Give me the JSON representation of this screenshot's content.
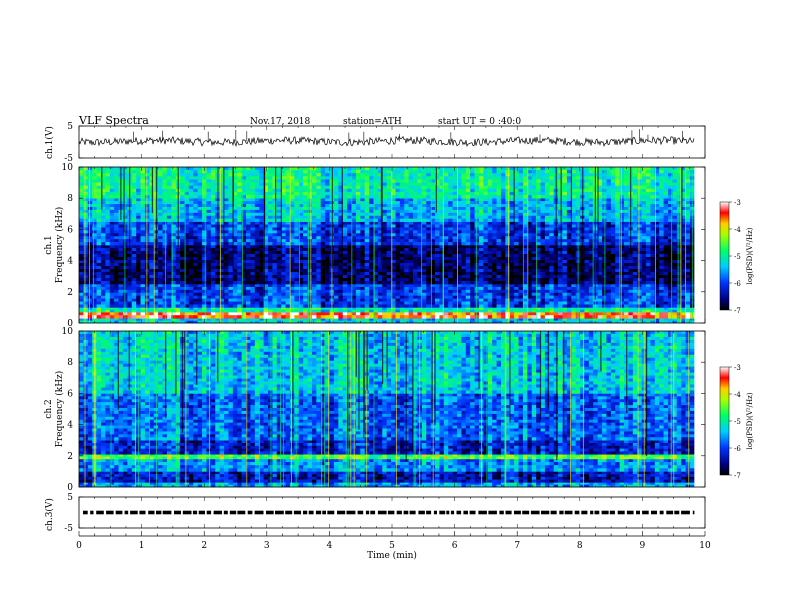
{
  "header": {
    "title": "VLF  Spectra",
    "date": "Nov.17, 2018",
    "station": "station=ATH",
    "start": "start  UT  =   0 :40:0"
  },
  "chart_data": [
    {
      "type": "line",
      "panel": "ch1-waveform",
      "ylabel": "ch.1(V)",
      "ylim": [
        -5,
        5
      ],
      "yticks": [
        "5",
        "-5"
      ],
      "x_range": [
        0,
        9.83
      ],
      "description_values": {
        "baseline": 0.2,
        "amplitude": 1.2
      },
      "color": "#000000"
    },
    {
      "type": "heatmap",
      "panel": "ch1-spectrogram",
      "ylabel": "ch.1\nFrequency  (kHz)",
      "ylabel_lines": [
        "ch.1",
        "Frequency  (kHz)"
      ],
      "ylim": [
        0,
        10
      ],
      "yticks": [
        "0",
        "2",
        "4",
        "6",
        "8",
        "10"
      ],
      "x_range": [
        0,
        9.83
      ],
      "colorbar": {
        "label": "log(PSD)(V²/Hz)",
        "range": [
          -7,
          -3
        ],
        "ticks": [
          "-3",
          "-4",
          "-5",
          "-6",
          "-7"
        ]
      },
      "bands_log_psd": [
        {
          "fmin": 0.0,
          "fmax": 0.3,
          "value": -5.3
        },
        {
          "fmin": 0.3,
          "fmax": 0.7,
          "value": -3.4
        },
        {
          "fmin": 0.7,
          "fmax": 1.0,
          "value": -5.0
        },
        {
          "fmin": 1.0,
          "fmax": 2.5,
          "value": -6.0
        },
        {
          "fmin": 2.5,
          "fmax": 5.0,
          "value": -6.6
        },
        {
          "fmin": 5.0,
          "fmax": 6.5,
          "value": -6.0
        },
        {
          "fmin": 6.5,
          "fmax": 8.0,
          "value": -5.4
        },
        {
          "fmin": 8.0,
          "fmax": 10.0,
          "value": -5.0
        }
      ]
    },
    {
      "type": "heatmap",
      "panel": "ch2-spectrogram",
      "ylabel_lines": [
        "ch.2",
        "Frequency  (kHz)"
      ],
      "ylim": [
        0,
        10
      ],
      "yticks": [
        "0",
        "2",
        "4",
        "6",
        "8",
        "10"
      ],
      "x_range": [
        0,
        9.83
      ],
      "colorbar": {
        "label": "log(PSD)(V²/Hz)",
        "range": [
          -7,
          -3
        ],
        "ticks": [
          "-3",
          "-4",
          "-5",
          "-6",
          "-7"
        ]
      },
      "bands_log_psd": [
        {
          "fmin": 0.0,
          "fmax": 0.3,
          "value": -5.5
        },
        {
          "fmin": 0.3,
          "fmax": 1.0,
          "value": -6.3
        },
        {
          "fmin": 1.0,
          "fmax": 1.8,
          "value": -5.6
        },
        {
          "fmin": 1.8,
          "fmax": 2.1,
          "value": -4.5
        },
        {
          "fmin": 2.1,
          "fmax": 3.0,
          "value": -6.2
        },
        {
          "fmin": 3.0,
          "fmax": 6.0,
          "value": -5.8
        },
        {
          "fmin": 6.0,
          "fmax": 10.0,
          "value": -5.3
        }
      ]
    },
    {
      "type": "line",
      "panel": "ch3-waveform",
      "ylabel": "ch.3(V)",
      "ylim": [
        -5,
        5
      ],
      "yticks": [
        "5",
        "-5"
      ],
      "x_range": [
        0,
        9.83
      ],
      "description_values": {
        "baseline": 0.0
      },
      "color": "#000000"
    }
  ],
  "xaxis": {
    "label": "Time  (min)",
    "ticks": [
      "0",
      "1",
      "2",
      "3",
      "4",
      "5",
      "6",
      "7",
      "8",
      "9",
      "10"
    ],
    "range": [
      0,
      10
    ]
  }
}
